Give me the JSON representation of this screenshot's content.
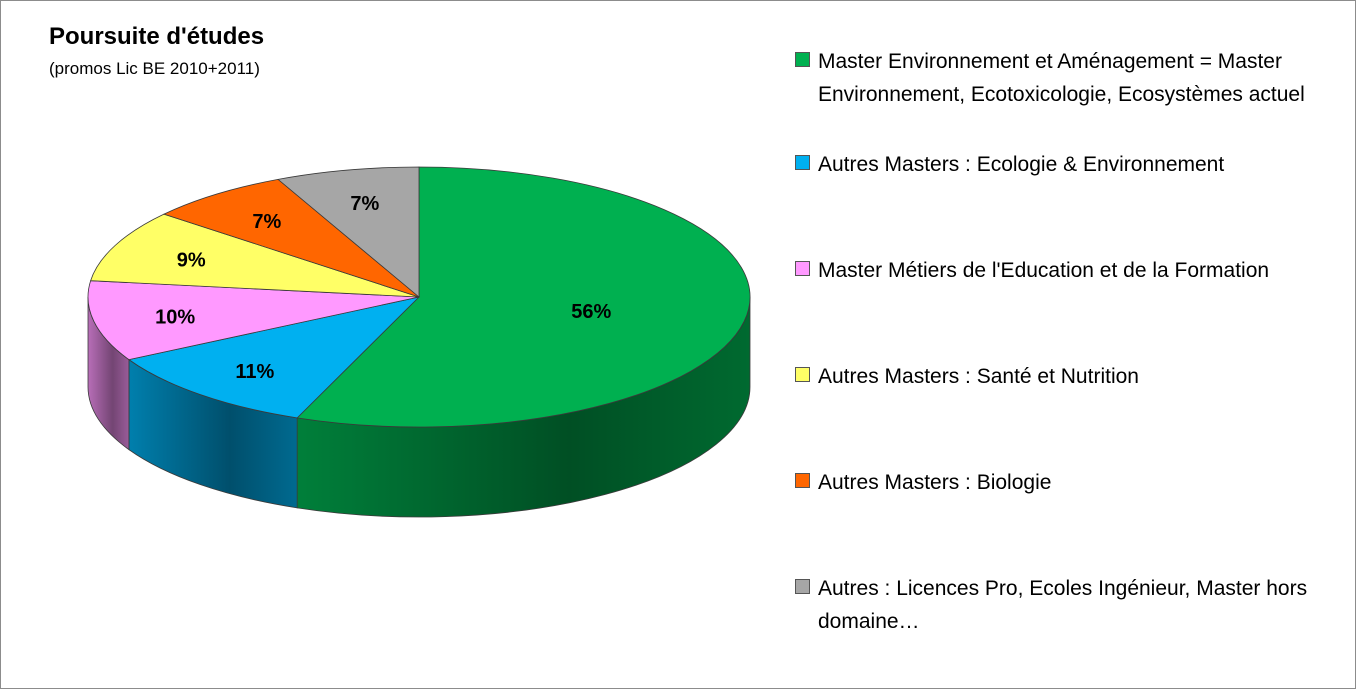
{
  "chart_data": {
    "type": "pie",
    "title": "Poursuite d'études",
    "subtitle": "(promos Lic BE 2010+2011)",
    "legend_position": "right",
    "slices": [
      {
        "label": "Master Environnement et Aménagement = Master Environnement, Ecotoxicologie, Ecosystèmes actuel",
        "value": 56,
        "display": "56%",
        "color": "#00b050"
      },
      {
        "label": "Autres Masters : Ecologie & Environnement",
        "value": 11,
        "display": "11%",
        "color": "#00b0f0"
      },
      {
        "label": "Master Métiers de l'Education et de la Formation",
        "value": 10,
        "display": "10%",
        "color": "#ff99ff"
      },
      {
        "label": "Autres Masters : Santé et Nutrition",
        "value": 9,
        "display": "9%",
        "color": "#ffff66"
      },
      {
        "label": "Autres Masters : Biologie",
        "value": 7,
        "display": "7%",
        "color": "#ff6600"
      },
      {
        "label": "Autres : Licences Pro, Ecoles Ingénieur, Master hors domaine…",
        "value": 7,
        "display": "7%",
        "color": "#a6a6a6"
      }
    ]
  }
}
